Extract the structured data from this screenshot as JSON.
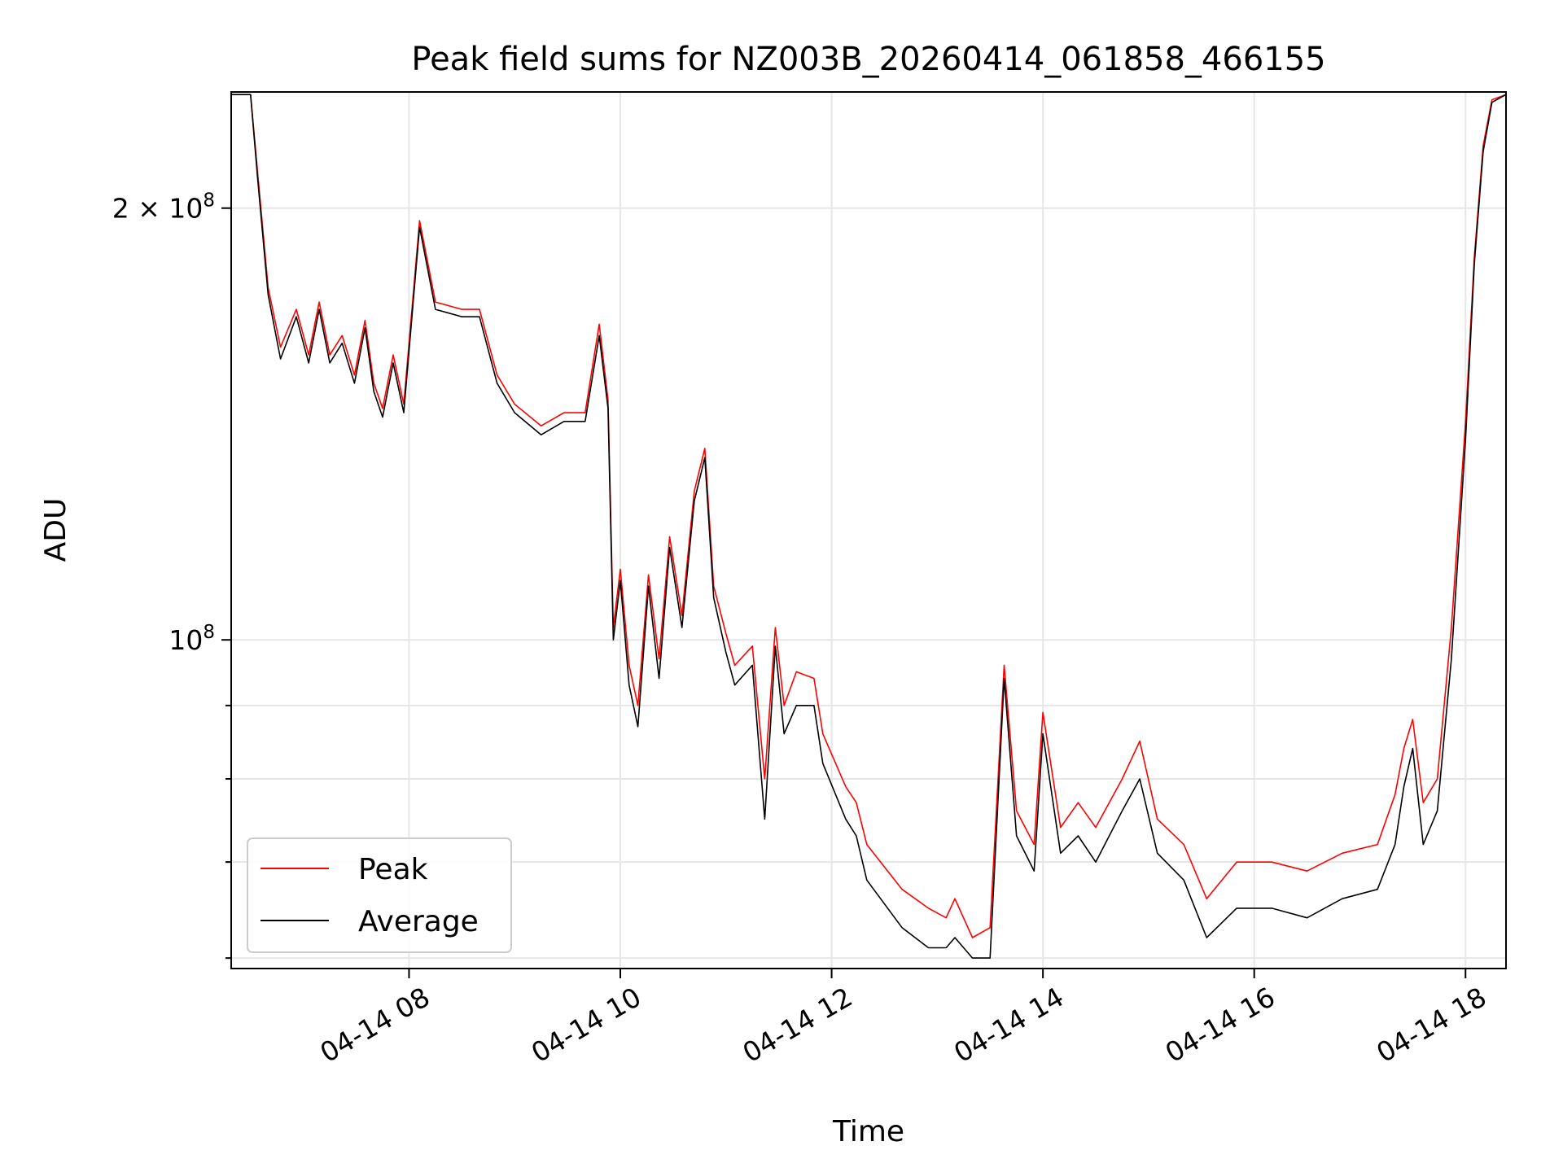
{
  "chart_data": {
    "type": "line",
    "title": "Peak field sums for NZ003B_20260414_061858_466155",
    "xlabel": "Time",
    "ylabel": "ADU",
    "yscale": "log",
    "xlim": [
      "04-14 06:19",
      "04-14 18:23"
    ],
    "ylim": [
      59000000,
      241000000
    ],
    "grid": true,
    "legend_position": "lower-left",
    "x_ticks": [
      {
        "t": "04-14 08:00",
        "label": "04-14 08"
      },
      {
        "t": "04-14 10:00",
        "label": "04-14 10"
      },
      {
        "t": "04-14 12:00",
        "label": "04-14 12"
      },
      {
        "t": "04-14 14:00",
        "label": "04-14 14"
      },
      {
        "t": "04-14 16:00",
        "label": "04-14 16"
      },
      {
        "t": "04-14 18:00",
        "label": "04-14 18"
      }
    ],
    "y_major_ticks": [
      {
        "value": 100000000,
        "base": "10",
        "exp": "8",
        "coef": ""
      },
      {
        "value": 200000000,
        "base": "10",
        "exp": "8",
        "coef": "2"
      }
    ],
    "y_minor_ticks": [
      60000000,
      70000000,
      80000000,
      90000000
    ],
    "series": [
      {
        "name": "Peak",
        "color": "#ff0000",
        "x": [
          "04-14 06:19",
          "04-14 06:30",
          "04-14 06:34",
          "04-14 06:40",
          "04-14 06:47",
          "04-14 06:56",
          "04-14 07:03",
          "04-14 07:09",
          "04-14 07:15",
          "04-14 07:22",
          "04-14 07:29",
          "04-14 07:35",
          "04-14 07:40",
          "04-14 07:45",
          "04-14 07:51",
          "04-14 07:57",
          "04-14 08:06",
          "04-14 08:15",
          "04-14 08:30",
          "04-14 08:40",
          "04-14 08:50",
          "04-14 09:00",
          "04-14 09:15",
          "04-14 09:28",
          "04-14 09:40",
          "04-14 09:48",
          "04-14 09:53",
          "04-14 09:56",
          "04-14 10:00",
          "04-14 10:05",
          "04-14 10:10",
          "04-14 10:16",
          "04-14 10:22",
          "04-14 10:28",
          "04-14 10:35",
          "04-14 10:42",
          "04-14 10:48",
          "04-14 10:53",
          "04-14 11:00",
          "04-14 11:05",
          "04-14 11:15",
          "04-14 11:22",
          "04-14 11:28",
          "04-14 11:33",
          "04-14 11:40",
          "04-14 11:50",
          "04-14 11:55",
          "04-14 12:08",
          "04-14 12:14",
          "04-14 12:20",
          "04-14 12:40",
          "04-14 12:55",
          "04-14 13:05",
          "04-14 13:10",
          "04-14 13:20",
          "04-14 13:30",
          "04-14 13:38",
          "04-14 13:45",
          "04-14 13:55",
          "04-14 14:00",
          "04-14 14:10",
          "04-14 14:20",
          "04-14 14:30",
          "04-14 14:45",
          "04-14 14:55",
          "04-14 15:05",
          "04-14 15:20",
          "04-14 15:33",
          "04-14 15:50",
          "04-14 16:10",
          "04-14 16:30",
          "04-14 16:50",
          "04-14 17:10",
          "04-14 17:20",
          "04-14 17:25",
          "04-14 17:30",
          "04-14 17:36",
          "04-14 17:44",
          "04-14 17:52",
          "04-14 18:00",
          "04-14 18:05",
          "04-14 18:10",
          "04-14 18:15",
          "04-14 18:23"
        ],
        "y": [
          240000000,
          240000000,
          212000000,
          176000000,
          160000000,
          170000000,
          158000000,
          172000000,
          158000000,
          163000000,
          153000000,
          167000000,
          151000000,
          145000000,
          158000000,
          146000000,
          196000000,
          172000000,
          170000000,
          170000000,
          153000000,
          146000000,
          141000000,
          144000000,
          144000000,
          166000000,
          147000000,
          102000000,
          112000000,
          96000000,
          90000000,
          111000000,
          97000000,
          118000000,
          104000000,
          127000000,
          136000000,
          109000000,
          101000000,
          96000000,
          99000000,
          80000000,
          102000000,
          90000000,
          95000000,
          94000000,
          86000000,
          79000000,
          77000000,
          72000000,
          67000000,
          65000000,
          64000000,
          66000000,
          62000000,
          63000000,
          96000000,
          76000000,
          72000000,
          89000000,
          74000000,
          77000000,
          74000000,
          80000000,
          85000000,
          75000000,
          72000000,
          66000000,
          70000000,
          70000000,
          69000000,
          71000000,
          72000000,
          78000000,
          84000000,
          88000000,
          77000000,
          80000000,
          102000000,
          142000000,
          185000000,
          221000000,
          238000000,
          240000000
        ]
      },
      {
        "name": "Average",
        "color": "#000000",
        "x": [
          "04-14 06:19",
          "04-14 06:30",
          "04-14 06:34",
          "04-14 06:40",
          "04-14 06:47",
          "04-14 06:56",
          "04-14 07:03",
          "04-14 07:09",
          "04-14 07:15",
          "04-14 07:22",
          "04-14 07:29",
          "04-14 07:35",
          "04-14 07:40",
          "04-14 07:45",
          "04-14 07:51",
          "04-14 07:57",
          "04-14 08:06",
          "04-14 08:15",
          "04-14 08:30",
          "04-14 08:40",
          "04-14 08:50",
          "04-14 09:00",
          "04-14 09:15",
          "04-14 09:28",
          "04-14 09:40",
          "04-14 09:48",
          "04-14 09:53",
          "04-14 09:56",
          "04-14 10:00",
          "04-14 10:05",
          "04-14 10:10",
          "04-14 10:16",
          "04-14 10:22",
          "04-14 10:28",
          "04-14 10:35",
          "04-14 10:42",
          "04-14 10:48",
          "04-14 10:53",
          "04-14 11:00",
          "04-14 11:05",
          "04-14 11:15",
          "04-14 11:22",
          "04-14 11:28",
          "04-14 11:33",
          "04-14 11:40",
          "04-14 11:50",
          "04-14 11:55",
          "04-14 12:08",
          "04-14 12:14",
          "04-14 12:20",
          "04-14 12:40",
          "04-14 12:55",
          "04-14 13:05",
          "04-14 13:10",
          "04-14 13:20",
          "04-14 13:30",
          "04-14 13:38",
          "04-14 13:45",
          "04-14 13:55",
          "04-14 14:00",
          "04-14 14:10",
          "04-14 14:20",
          "04-14 14:30",
          "04-14 14:45",
          "04-14 14:55",
          "04-14 15:05",
          "04-14 15:20",
          "04-14 15:33",
          "04-14 15:50",
          "04-14 16:10",
          "04-14 16:30",
          "04-14 16:50",
          "04-14 17:10",
          "04-14 17:20",
          "04-14 17:25",
          "04-14 17:30",
          "04-14 17:36",
          "04-14 17:44",
          "04-14 17:52",
          "04-14 18:00",
          "04-14 18:05",
          "04-14 18:10",
          "04-14 18:15",
          "04-14 18:23"
        ],
        "y": [
          240000000,
          240000000,
          210000000,
          174000000,
          157000000,
          168000000,
          156000000,
          170000000,
          156000000,
          161000000,
          151000000,
          165000000,
          149000000,
          143000000,
          156000000,
          144000000,
          194000000,
          170000000,
          168000000,
          168000000,
          151000000,
          144000000,
          139000000,
          142000000,
          142000000,
          163000000,
          145000000,
          100000000,
          110000000,
          93000000,
          87000000,
          109000000,
          94000000,
          116000000,
          102000000,
          125000000,
          134000000,
          107000000,
          98000000,
          93000000,
          96000000,
          75000000,
          99000000,
          86000000,
          90000000,
          90000000,
          82000000,
          75000000,
          73000000,
          68000000,
          63000000,
          61000000,
          61000000,
          62000000,
          60000000,
          60000000,
          94000000,
          73000000,
          69000000,
          86000000,
          71000000,
          73000000,
          70000000,
          76000000,
          80000000,
          71000000,
          68000000,
          62000000,
          65000000,
          65000000,
          64000000,
          66000000,
          67000000,
          72000000,
          79000000,
          84000000,
          72000000,
          76000000,
          97000000,
          138000000,
          183000000,
          219000000,
          237000000,
          240000000
        ]
      }
    ]
  }
}
